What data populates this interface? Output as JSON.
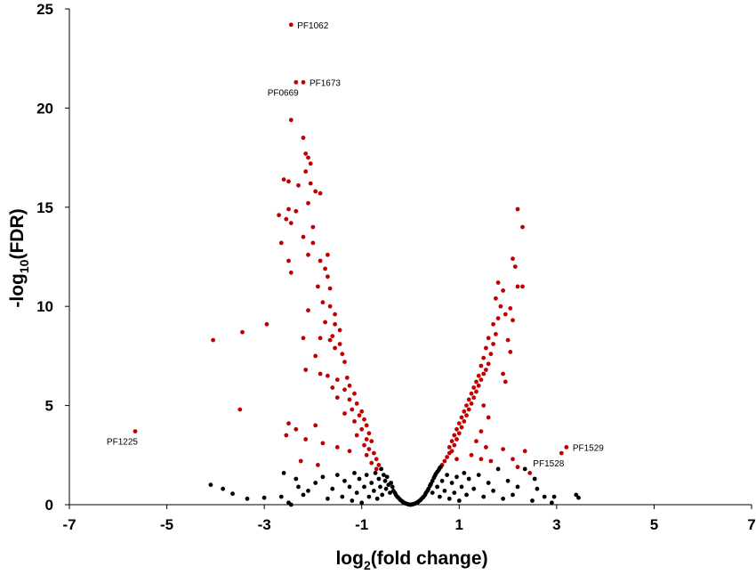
{
  "chart_data": {
    "type": "scatter",
    "title": "",
    "xlabel": {
      "prefix": "log",
      "sub": "2",
      "suffix": "(fold change)"
    },
    "ylabel": {
      "prefix": "-log",
      "sub": "10",
      "suffix": "(FDR)"
    },
    "xlim": [
      -7,
      7
    ],
    "ylim": [
      0,
      25
    ],
    "xticks": [
      -7,
      -5,
      -3,
      -1,
      1,
      3,
      5,
      7
    ],
    "yticks": [
      0,
      5,
      10,
      15,
      20,
      25
    ],
    "grid": false,
    "legend": "none",
    "colors": {
      "significant": "#c00000",
      "not_significant": "#000000"
    },
    "annotations": [
      {
        "text": "PF1062",
        "x": -2.45,
        "y": 24.2,
        "pos": "right"
      },
      {
        "text": "PF1673",
        "x": -2.2,
        "y": 21.3,
        "pos": "right"
      },
      {
        "text": "PF0669",
        "x": -2.35,
        "y": 21.3,
        "pos": "below-left"
      },
      {
        "text": "PF1225",
        "x": -5.65,
        "y": 3.7,
        "pos": "below-left"
      },
      {
        "text": "PF1529",
        "x": 3.2,
        "y": 2.9,
        "pos": "right"
      },
      {
        "text": "PF1528",
        "x": 3.1,
        "y": 2.6,
        "pos": "below-left"
      }
    ],
    "series": [
      {
        "class": "significant",
        "points": [
          [
            -2.45,
            24.2
          ],
          [
            -2.35,
            21.3
          ],
          [
            -2.2,
            21.3
          ],
          [
            -2.45,
            19.4
          ],
          [
            -2.2,
            18.5
          ],
          [
            -2.15,
            17.7
          ],
          [
            -2.1,
            17.5
          ],
          [
            -2.05,
            17.2
          ],
          [
            -2.15,
            16.8
          ],
          [
            -2.6,
            16.4
          ],
          [
            -2.5,
            16.3
          ],
          [
            -2.05,
            16.2
          ],
          [
            -2.3,
            16.1
          ],
          [
            -1.95,
            15.8
          ],
          [
            -1.85,
            15.7
          ],
          [
            -2.1,
            15.2
          ],
          [
            -2.5,
            14.9
          ],
          [
            -2.35,
            14.8
          ],
          [
            -2.7,
            14.6
          ],
          [
            -2.55,
            14.4
          ],
          [
            -2.45,
            14.2
          ],
          [
            -2.0,
            14.0
          ],
          [
            -2.2,
            13.5
          ],
          [
            -2.0,
            13.2
          ],
          [
            -2.65,
            13.2
          ],
          [
            -2.1,
            12.6
          ],
          [
            -2.5,
            12.3
          ],
          [
            -1.85,
            12.3
          ],
          [
            -1.7,
            12.6
          ],
          [
            -2.45,
            11.7
          ],
          [
            -1.75,
            11.9
          ],
          [
            -1.7,
            11.5
          ],
          [
            -1.9,
            11.0
          ],
          [
            -1.65,
            10.9
          ],
          [
            -1.8,
            10.2
          ],
          [
            -1.65,
            10.0
          ],
          [
            -2.1,
            9.8
          ],
          [
            -1.55,
            9.6
          ],
          [
            -1.75,
            9.2
          ],
          [
            -1.55,
            9.1
          ],
          [
            -2.95,
            9.1
          ],
          [
            -1.45,
            8.8
          ],
          [
            -1.6,
            8.5
          ],
          [
            -2.2,
            8.4
          ],
          [
            -1.85,
            8.4
          ],
          [
            -1.65,
            8.3
          ],
          [
            -1.45,
            8.1
          ],
          [
            -1.55,
            7.9
          ],
          [
            -1.4,
            7.6
          ],
          [
            -1.95,
            7.5
          ],
          [
            -1.35,
            7.2
          ],
          [
            -2.15,
            6.8
          ],
          [
            -1.85,
            6.6
          ],
          [
            -1.7,
            6.5
          ],
          [
            -1.5,
            6.3
          ],
          [
            -1.3,
            6.4
          ],
          [
            -1.25,
            6.0
          ],
          [
            -1.6,
            5.9
          ],
          [
            -1.35,
            5.8
          ],
          [
            -1.15,
            5.6
          ],
          [
            -1.5,
            5.4
          ],
          [
            -1.25,
            5.3
          ],
          [
            -1.1,
            5.1
          ],
          [
            -1.2,
            4.8
          ],
          [
            -1.0,
            4.7
          ],
          [
            -1.35,
            4.6
          ],
          [
            -1.05,
            4.5
          ],
          [
            -0.95,
            4.3
          ],
          [
            -1.15,
            4.2
          ],
          [
            -0.9,
            4.0
          ],
          [
            -2.5,
            4.1
          ],
          [
            -2.35,
            3.8
          ],
          [
            -1.95,
            4.0
          ],
          [
            -1.0,
            3.8
          ],
          [
            -0.85,
            3.6
          ],
          [
            -1.1,
            3.5
          ],
          [
            -0.9,
            3.3
          ],
          [
            -0.8,
            3.2
          ],
          [
            -0.95,
            3.0
          ],
          [
            -0.85,
            2.8
          ],
          [
            -0.75,
            2.6
          ],
          [
            -0.9,
            2.5
          ],
          [
            -0.7,
            2.3
          ],
          [
            -0.8,
            2.1
          ],
          [
            -0.65,
            2.0
          ],
          [
            -0.7,
            1.8
          ],
          [
            -2.55,
            3.5
          ],
          [
            -2.15,
            3.3
          ],
          [
            -1.8,
            3.1
          ],
          [
            -1.5,
            2.9
          ],
          [
            -1.25,
            2.7
          ],
          [
            -2.25,
            2.2
          ],
          [
            -1.9,
            2.0
          ],
          [
            -4.05,
            8.3
          ],
          [
            -3.45,
            8.7
          ],
          [
            -3.5,
            4.8
          ],
          [
            -5.65,
            3.7
          ],
          [
            0.65,
            2.0
          ],
          [
            0.7,
            2.2
          ],
          [
            0.75,
            2.4
          ],
          [
            0.8,
            2.6
          ],
          [
            0.85,
            2.7
          ],
          [
            0.8,
            2.9
          ],
          [
            0.9,
            3.0
          ],
          [
            0.85,
            3.2
          ],
          [
            0.95,
            3.3
          ],
          [
            0.9,
            3.5
          ],
          [
            1.0,
            3.6
          ],
          [
            0.95,
            3.8
          ],
          [
            1.05,
            3.9
          ],
          [
            1.0,
            4.1
          ],
          [
            1.1,
            4.2
          ],
          [
            1.05,
            4.4
          ],
          [
            1.15,
            4.5
          ],
          [
            1.1,
            4.7
          ],
          [
            1.2,
            4.8
          ],
          [
            1.15,
            5.0
          ],
          [
            1.25,
            5.1
          ],
          [
            1.2,
            5.3
          ],
          [
            1.3,
            5.4
          ],
          [
            1.25,
            5.6
          ],
          [
            1.35,
            5.7
          ],
          [
            1.3,
            5.9
          ],
          [
            1.4,
            6.0
          ],
          [
            1.35,
            6.2
          ],
          [
            1.45,
            6.3
          ],
          [
            1.4,
            6.5
          ],
          [
            1.5,
            6.6
          ],
          [
            1.55,
            6.8
          ],
          [
            1.45,
            7.0
          ],
          [
            1.6,
            7.1
          ],
          [
            1.5,
            7.4
          ],
          [
            1.65,
            7.6
          ],
          [
            1.55,
            7.9
          ],
          [
            1.7,
            8.1
          ],
          [
            1.6,
            8.4
          ],
          [
            1.75,
            8.6
          ],
          [
            1.7,
            9.1
          ],
          [
            1.8,
            9.4
          ],
          [
            1.85,
            10.0
          ],
          [
            1.75,
            10.4
          ],
          [
            1.9,
            10.8
          ],
          [
            1.8,
            11.2
          ],
          [
            2.1,
            12.4
          ],
          [
            2.15,
            12.0
          ],
          [
            2.2,
            11.0
          ],
          [
            2.3,
            11.0
          ],
          [
            2.2,
            14.9
          ],
          [
            2.3,
            14.0
          ],
          [
            2.05,
            9.9
          ],
          [
            1.95,
            9.6
          ],
          [
            2.0,
            8.3
          ],
          [
            2.05,
            7.7
          ],
          [
            2.1,
            9.3
          ],
          [
            1.9,
            6.6
          ],
          [
            1.95,
            6.2
          ],
          [
            1.5,
            5.0
          ],
          [
            1.6,
            4.4
          ],
          [
            1.45,
            3.7
          ],
          [
            1.35,
            3.2
          ],
          [
            1.55,
            2.9
          ],
          [
            1.25,
            2.5
          ],
          [
            1.65,
            2.2
          ],
          [
            1.9,
            2.8
          ],
          [
            1.45,
            2.3
          ],
          [
            2.35,
            2.7
          ],
          [
            0.95,
            2.3
          ],
          [
            3.2,
            2.9
          ],
          [
            3.1,
            2.6
          ],
          [
            2.2,
            1.9
          ],
          [
            2.45,
            1.6
          ],
          [
            2.1,
            2.3
          ]
        ]
      },
      {
        "class": "not_significant",
        "points": [
          [
            -4.1,
            1.0
          ],
          [
            -3.85,
            0.8
          ],
          [
            -3.65,
            0.55
          ],
          [
            -3.35,
            0.3
          ],
          [
            -3.0,
            0.35
          ],
          [
            -2.6,
            1.6
          ],
          [
            -2.65,
            0.4
          ],
          [
            -2.5,
            0.1
          ],
          [
            -2.45,
            0.0
          ],
          [
            -2.35,
            1.3
          ],
          [
            -2.2,
            0.5
          ],
          [
            -2.3,
            0.9
          ],
          [
            -2.1,
            0.7
          ],
          [
            -1.95,
            1.1
          ],
          [
            -1.8,
            1.4
          ],
          [
            -1.7,
            0.3
          ],
          [
            -1.6,
            0.8
          ],
          [
            -1.5,
            1.5
          ],
          [
            -1.4,
            0.4
          ],
          [
            -1.35,
            1.2
          ],
          [
            -1.25,
            0.9
          ],
          [
            -1.2,
            0.2
          ],
          [
            -1.15,
            1.6
          ],
          [
            -1.1,
            0.6
          ],
          [
            -1.05,
            1.3
          ],
          [
            -1.0,
            0.1
          ],
          [
            -0.95,
            0.9
          ],
          [
            -0.9,
            1.5
          ],
          [
            -0.85,
            0.4
          ],
          [
            -0.8,
            1.1
          ],
          [
            -0.75,
            0.7
          ],
          [
            -0.72,
            1.6
          ],
          [
            -0.68,
            0.3
          ],
          [
            -0.65,
            1.3
          ],
          [
            -0.62,
            0.9
          ],
          [
            -0.6,
            1.8
          ],
          [
            -0.58,
            0.5
          ],
          [
            -0.55,
            1.5
          ],
          [
            -0.52,
            1.2
          ],
          [
            -0.5,
            0.8
          ],
          [
            -0.48,
            1.4
          ],
          [
            -0.45,
            1.0
          ],
          [
            -0.42,
            0.6
          ],
          [
            -0.4,
            1.1
          ],
          [
            -0.37,
            0.9
          ],
          [
            -0.35,
            0.7
          ],
          [
            -0.32,
            0.6
          ],
          [
            -0.3,
            0.5
          ],
          [
            -0.27,
            0.4
          ],
          [
            -0.25,
            0.35
          ],
          [
            -0.22,
            0.28
          ],
          [
            -0.2,
            0.22
          ],
          [
            -0.17,
            0.17
          ],
          [
            -0.15,
            0.12
          ],
          [
            -0.12,
            0.09
          ],
          [
            -0.1,
            0.06
          ],
          [
            -0.07,
            0.04
          ],
          [
            -0.05,
            0.02
          ],
          [
            -0.02,
            0.01
          ],
          [
            0.0,
            0.0
          ],
          [
            0.02,
            0.01
          ],
          [
            0.05,
            0.02
          ],
          [
            0.07,
            0.04
          ],
          [
            0.1,
            0.06
          ],
          [
            0.12,
            0.09
          ],
          [
            0.15,
            0.12
          ],
          [
            0.17,
            0.17
          ],
          [
            0.2,
            0.22
          ],
          [
            0.22,
            0.28
          ],
          [
            0.25,
            0.35
          ],
          [
            0.27,
            0.4
          ],
          [
            0.3,
            0.5
          ],
          [
            0.32,
            0.6
          ],
          [
            0.35,
            0.7
          ],
          [
            0.37,
            0.8
          ],
          [
            0.4,
            0.95
          ],
          [
            0.42,
            1.05
          ],
          [
            0.45,
            1.2
          ],
          [
            0.48,
            1.35
          ],
          [
            0.5,
            1.45
          ],
          [
            0.52,
            1.55
          ],
          [
            0.55,
            1.65
          ],
          [
            0.58,
            1.75
          ],
          [
            0.6,
            1.85
          ],
          [
            0.62,
            1.9
          ],
          [
            0.45,
            0.6
          ],
          [
            0.55,
            0.9
          ],
          [
            0.6,
            0.4
          ],
          [
            0.65,
            1.2
          ],
          [
            0.7,
            0.7
          ],
          [
            0.75,
            1.5
          ],
          [
            0.8,
            0.3
          ],
          [
            0.85,
            1.1
          ],
          [
            0.9,
            0.6
          ],
          [
            0.95,
            1.4
          ],
          [
            1.0,
            0.2
          ],
          [
            1.05,
            0.9
          ],
          [
            1.1,
            1.6
          ],
          [
            1.15,
            0.5
          ],
          [
            1.2,
            1.3
          ],
          [
            1.3,
            0.8
          ],
          [
            1.4,
            1.5
          ],
          [
            1.5,
            0.4
          ],
          [
            1.6,
            1.1
          ],
          [
            1.7,
            0.7
          ],
          [
            1.8,
            1.8
          ],
          [
            1.9,
            0.3
          ],
          [
            2.0,
            1.2
          ],
          [
            2.1,
            0.5
          ],
          [
            2.2,
            0.9
          ],
          [
            2.35,
            1.8
          ],
          [
            2.5,
            0.2
          ],
          [
            2.55,
            1.3
          ],
          [
            2.6,
            0.8
          ],
          [
            2.75,
            0.4
          ],
          [
            2.9,
            0.1
          ],
          [
            2.95,
            0.4
          ],
          [
            3.4,
            0.5
          ],
          [
            3.45,
            0.35
          ]
        ]
      }
    ]
  }
}
